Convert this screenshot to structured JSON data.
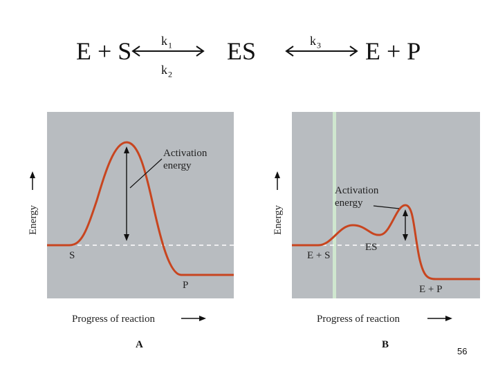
{
  "equation": {
    "reactants": "E + S",
    "k1": "k1",
    "k2": "k2",
    "complex": "ES",
    "k3": "k3",
    "products": "E + P"
  },
  "diagram_a": {
    "caption": "A",
    "ylabel": "Energy",
    "xlabel": "Progress of reaction",
    "annotation_line1": "Activation",
    "annotation_line2": "energy",
    "start_label": "S",
    "end_label": "P"
  },
  "diagram_b": {
    "caption": "B",
    "ylabel": "Energy",
    "xlabel": "Progress of reaction",
    "annotation_line1": "Activation",
    "annotation_line2": "energy",
    "start_label": "E + S",
    "middle_label": "ES",
    "end_label": "E + P"
  },
  "slide_number": "56",
  "colors": {
    "panel_bg": "#b8bcc0",
    "curve": "#c8451f",
    "highlight": "#cfe7cf"
  }
}
